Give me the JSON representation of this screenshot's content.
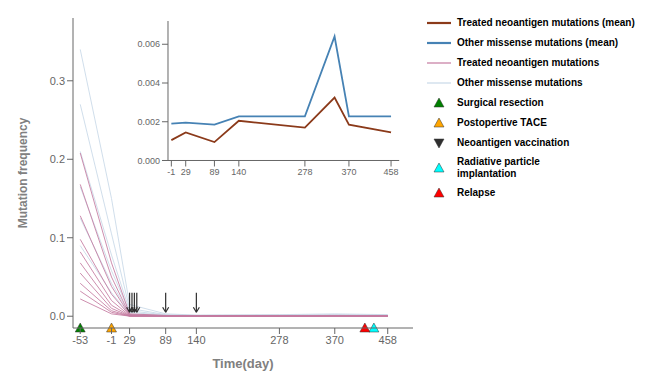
{
  "chart_data": [
    {
      "type": "line",
      "xlabel": "Time(day)",
      "ylabel": "Mutation frequency",
      "x": [
        -53,
        -1,
        29,
        89,
        140,
        278,
        370,
        458
      ],
      "xlim": [
        -65,
        500
      ],
      "ylim": [
        -0.015,
        0.38
      ],
      "xticks": [
        -53,
        -1,
        29,
        89,
        140,
        278,
        370,
        458
      ],
      "yticks": [
        {
          "value": 0,
          "label": "0.0"
        },
        0.1,
        0.2,
        0.3
      ],
      "grid": false,
      "legend": "right",
      "series": [
        {
          "name": "Treated neoantigen mutations",
          "color": "#C47AA0",
          "values": [
            [
              0.208,
              0.068,
              0.003,
              0.001,
              0.0005,
              0.0008,
              0.001,
              0.0008
            ],
            [
              0.168,
              0.05,
              0.002,
              0.0008,
              0.0003,
              0.0005,
              0.0008,
              0.0005
            ],
            [
              0.128,
              0.038,
              0.0015,
              0.0006,
              0.0002,
              0.0004,
              0.0006,
              0.0004
            ],
            [
              0.098,
              0.028,
              0.001,
              0.0004,
              0.00015,
              0.0003,
              0.0005,
              0.0003
            ],
            [
              0.082,
              0.02,
              0.0008,
              0.0003,
              0.0001,
              0.0002,
              0.0004,
              0.0002
            ],
            [
              0.068,
              0.014,
              0.0006,
              0.0002,
              8e-05,
              0.00015,
              0.0003,
              0.00015
            ],
            [
              0.055,
              0.01,
              0.0004,
              0.00015,
              6e-05,
              0.0001,
              0.0002,
              0.0001
            ],
            [
              0.042,
              0.007,
              0.0003,
              0.0001,
              4e-05,
              8e-05,
              0.00015,
              8e-05
            ],
            [
              0.032,
              0.005,
              0.0002,
              8e-05,
              3e-05,
              6e-05,
              0.0001,
              6e-05
            ],
            [
              0.022,
              0.003,
              0.00015,
              5e-05,
              2e-05,
              4e-05,
              8e-05,
              4e-05
            ]
          ]
        },
        {
          "name": "Other missense mutations",
          "color": "#C8D8E8",
          "values": [
            [
              0.34,
              0.15,
              0.015,
              0.003,
              0.0015,
              0.002,
              0.003,
              0.002
            ],
            [
              0.27,
              0.105,
              0.01,
              0.002,
              0.001,
              0.0015,
              0.002,
              0.0015
            ],
            [
              0.21,
              0.078,
              0.007,
              0.0015,
              0.0008,
              0.001,
              0.0015,
              0.001
            ],
            [
              0.165,
              0.058,
              0.005,
              0.001,
              0.0005,
              0.0008,
              0.001,
              0.0008
            ],
            [
              0.125,
              0.042,
              0.003,
              0.0008,
              0.0003,
              0.0005,
              0.0008,
              0.0005
            ],
            [
              0.09,
              0.03,
              0.002,
              0.0005,
              0.0002,
              0.0003,
              0.0005,
              0.0003
            ]
          ]
        }
      ],
      "events": [
        {
          "label": "Surgical resection",
          "x": -53,
          "color": "green",
          "marker": "^"
        },
        {
          "label": "Postopertive TACE",
          "x": -1,
          "color": "orange",
          "marker": "^"
        },
        {
          "label": "Neoantigen vaccination",
          "x": [
            29,
            33,
            37,
            41,
            89,
            140
          ],
          "y_tip": 0.005,
          "y_base": 0.03,
          "color": "#2F2F2F",
          "marker": "v"
        },
        {
          "label": "Radiative particle\nimplantation",
          "x": 435,
          "color": "cyan",
          "marker": "^"
        },
        {
          "label": "Relapse",
          "x": 420,
          "color": "red",
          "marker": "^"
        }
      ]
    },
    {
      "type": "line",
      "x": [
        -1,
        29,
        89,
        140,
        278,
        340,
        370,
        458
      ],
      "xlim": [
        -8,
        475
      ],
      "ylim": [
        0,
        0.0072
      ],
      "xticks": [
        -1,
        29,
        89,
        140,
        278,
        370,
        458
      ],
      "yticks": [
        {
          "value": 0,
          "label": "0.000"
        },
        0.002,
        0.004,
        0.006
      ],
      "grid": false,
      "series": [
        {
          "name": "Treated neoantigen mutations (mean)",
          "color": "#8B3A1A",
          "values": [
            0.00105,
            0.00145,
            0.00095,
            0.00205,
            0.0017,
            0.00325,
            0.00185,
            0.00145
          ]
        },
        {
          "name": "Other missense mutations (mean)",
          "color": "#4682B4",
          "values": [
            0.0019,
            0.00195,
            0.00185,
            0.00228,
            0.00228,
            0.0064,
            0.00228,
            0.00228
          ]
        }
      ]
    }
  ]
}
